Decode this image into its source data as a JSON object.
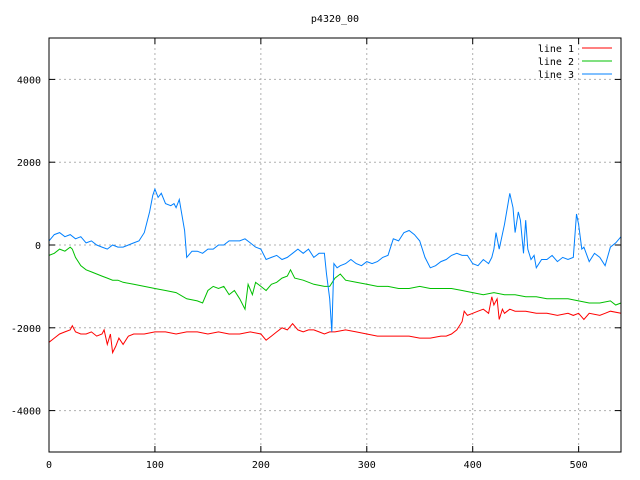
{
  "chart_data": {
    "type": "line",
    "title": "p4320_00",
    "xlabel": "",
    "ylabel": "",
    "xlim": [
      0,
      540
    ],
    "ylim": [
      -5000,
      5000
    ],
    "xticks": [
      0,
      100,
      200,
      300,
      400,
      500
    ],
    "yticks": [
      -4000,
      -2000,
      0,
      2000,
      4000
    ],
    "grid": true,
    "legend_position": "top-right",
    "series": [
      {
        "name": "line 1",
        "color": "#ff0000",
        "points": [
          [
            0,
            -2350
          ],
          [
            5,
            -2250
          ],
          [
            10,
            -2150
          ],
          [
            15,
            -2100
          ],
          [
            20,
            -2050
          ],
          [
            22,
            -1950
          ],
          [
            25,
            -2100
          ],
          [
            30,
            -2150
          ],
          [
            35,
            -2150
          ],
          [
            40,
            -2100
          ],
          [
            45,
            -2200
          ],
          [
            50,
            -2150
          ],
          [
            52,
            -2050
          ],
          [
            55,
            -2400
          ],
          [
            58,
            -2150
          ],
          [
            60,
            -2600
          ],
          [
            63,
            -2450
          ],
          [
            66,
            -2250
          ],
          [
            70,
            -2400
          ],
          [
            75,
            -2200
          ],
          [
            80,
            -2150
          ],
          [
            90,
            -2150
          ],
          [
            100,
            -2100
          ],
          [
            110,
            -2100
          ],
          [
            120,
            -2150
          ],
          [
            130,
            -2100
          ],
          [
            140,
            -2100
          ],
          [
            150,
            -2150
          ],
          [
            160,
            -2100
          ],
          [
            170,
            -2150
          ],
          [
            180,
            -2150
          ],
          [
            190,
            -2100
          ],
          [
            200,
            -2150
          ],
          [
            205,
            -2300
          ],
          [
            210,
            -2200
          ],
          [
            215,
            -2100
          ],
          [
            220,
            -2000
          ],
          [
            225,
            -2050
          ],
          [
            230,
            -1900
          ],
          [
            235,
            -2050
          ],
          [
            240,
            -2100
          ],
          [
            245,
            -2050
          ],
          [
            250,
            -2050
          ],
          [
            255,
            -2100
          ],
          [
            260,
            -2150
          ],
          [
            265,
            -2100
          ],
          [
            270,
            -2100
          ],
          [
            280,
            -2050
          ],
          [
            290,
            -2100
          ],
          [
            300,
            -2150
          ],
          [
            310,
            -2200
          ],
          [
            320,
            -2200
          ],
          [
            330,
            -2200
          ],
          [
            340,
            -2200
          ],
          [
            350,
            -2250
          ],
          [
            360,
            -2250
          ],
          [
            370,
            -2200
          ],
          [
            375,
            -2200
          ],
          [
            380,
            -2150
          ],
          [
            385,
            -2050
          ],
          [
            390,
            -1850
          ],
          [
            392,
            -1600
          ],
          [
            395,
            -1700
          ],
          [
            400,
            -1650
          ],
          [
            405,
            -1600
          ],
          [
            410,
            -1550
          ],
          [
            415,
            -1650
          ],
          [
            418,
            -1250
          ],
          [
            420,
            -1450
          ],
          [
            423,
            -1300
          ],
          [
            425,
            -1800
          ],
          [
            428,
            -1550
          ],
          [
            430,
            -1650
          ],
          [
            435,
            -1550
          ],
          [
            440,
            -1600
          ],
          [
            450,
            -1600
          ],
          [
            460,
            -1650
          ],
          [
            470,
            -1650
          ],
          [
            480,
            -1700
          ],
          [
            490,
            -1650
          ],
          [
            495,
            -1700
          ],
          [
            500,
            -1650
          ],
          [
            505,
            -1800
          ],
          [
            510,
            -1650
          ],
          [
            520,
            -1700
          ],
          [
            525,
            -1650
          ],
          [
            530,
            -1600
          ],
          [
            540,
            -1650
          ]
        ]
      },
      {
        "name": "line 2",
        "color": "#00c000",
        "points": [
          [
            0,
            -250
          ],
          [
            5,
            -200
          ],
          [
            10,
            -100
          ],
          [
            15,
            -150
          ],
          [
            20,
            -50
          ],
          [
            22,
            -100
          ],
          [
            25,
            -300
          ],
          [
            30,
            -500
          ],
          [
            35,
            -600
          ],
          [
            40,
            -650
          ],
          [
            45,
            -700
          ],
          [
            50,
            -750
          ],
          [
            55,
            -800
          ],
          [
            60,
            -850
          ],
          [
            65,
            -850
          ],
          [
            70,
            -900
          ],
          [
            80,
            -950
          ],
          [
            90,
            -1000
          ],
          [
            100,
            -1050
          ],
          [
            110,
            -1100
          ],
          [
            120,
            -1150
          ],
          [
            130,
            -1300
          ],
          [
            140,
            -1350
          ],
          [
            145,
            -1400
          ],
          [
            150,
            -1100
          ],
          [
            155,
            -1000
          ],
          [
            160,
            -1050
          ],
          [
            165,
            -1000
          ],
          [
            170,
            -1200
          ],
          [
            175,
            -1100
          ],
          [
            180,
            -1300
          ],
          [
            185,
            -1550
          ],
          [
            188,
            -950
          ],
          [
            192,
            -1200
          ],
          [
            195,
            -900
          ],
          [
            200,
            -1000
          ],
          [
            205,
            -1100
          ],
          [
            210,
            -950
          ],
          [
            215,
            -900
          ],
          [
            220,
            -800
          ],
          [
            225,
            -750
          ],
          [
            228,
            -600
          ],
          [
            232,
            -800
          ],
          [
            240,
            -850
          ],
          [
            250,
            -950
          ],
          [
            260,
            -1000
          ],
          [
            265,
            -1000
          ],
          [
            270,
            -800
          ],
          [
            275,
            -700
          ],
          [
            280,
            -850
          ],
          [
            290,
            -900
          ],
          [
            300,
            -950
          ],
          [
            310,
            -1000
          ],
          [
            320,
            -1000
          ],
          [
            330,
            -1050
          ],
          [
            340,
            -1050
          ],
          [
            350,
            -1000
          ],
          [
            360,
            -1050
          ],
          [
            370,
            -1050
          ],
          [
            380,
            -1050
          ],
          [
            390,
            -1100
          ],
          [
            400,
            -1150
          ],
          [
            410,
            -1200
          ],
          [
            420,
            -1150
          ],
          [
            430,
            -1200
          ],
          [
            440,
            -1200
          ],
          [
            450,
            -1250
          ],
          [
            460,
            -1250
          ],
          [
            470,
            -1300
          ],
          [
            480,
            -1300
          ],
          [
            490,
            -1300
          ],
          [
            500,
            -1350
          ],
          [
            510,
            -1400
          ],
          [
            520,
            -1400
          ],
          [
            530,
            -1350
          ],
          [
            535,
            -1450
          ],
          [
            540,
            -1400
          ]
        ]
      },
      {
        "name": "line 3",
        "color": "#0080ff",
        "points": [
          [
            0,
            100
          ],
          [
            5,
            250
          ],
          [
            10,
            300
          ],
          [
            15,
            200
          ],
          [
            20,
            250
          ],
          [
            25,
            150
          ],
          [
            30,
            200
          ],
          [
            35,
            50
          ],
          [
            40,
            100
          ],
          [
            45,
            0
          ],
          [
            50,
            -50
          ],
          [
            55,
            -100
          ],
          [
            60,
            0
          ],
          [
            65,
            -50
          ],
          [
            70,
            -50
          ],
          [
            75,
            0
          ],
          [
            80,
            50
          ],
          [
            85,
            100
          ],
          [
            90,
            300
          ],
          [
            95,
            800
          ],
          [
            98,
            1200
          ],
          [
            100,
            1350
          ],
          [
            103,
            1150
          ],
          [
            106,
            1250
          ],
          [
            110,
            1000
          ],
          [
            115,
            950
          ],
          [
            118,
            1000
          ],
          [
            120,
            900
          ],
          [
            123,
            1100
          ],
          [
            125,
            800
          ],
          [
            128,
            350
          ],
          [
            130,
            -300
          ],
          [
            135,
            -150
          ],
          [
            140,
            -150
          ],
          [
            145,
            -200
          ],
          [
            150,
            -100
          ],
          [
            155,
            -100
          ],
          [
            160,
            0
          ],
          [
            165,
            0
          ],
          [
            170,
            100
          ],
          [
            175,
            100
          ],
          [
            180,
            100
          ],
          [
            185,
            150
          ],
          [
            190,
            50
          ],
          [
            195,
            -50
          ],
          [
            200,
            -100
          ],
          [
            205,
            -350
          ],
          [
            210,
            -300
          ],
          [
            215,
            -250
          ],
          [
            220,
            -350
          ],
          [
            225,
            -300
          ],
          [
            230,
            -200
          ],
          [
            235,
            -100
          ],
          [
            240,
            -200
          ],
          [
            245,
            -100
          ],
          [
            250,
            -300
          ],
          [
            255,
            -200
          ],
          [
            260,
            -200
          ],
          [
            262,
            -700
          ],
          [
            265,
            -1300
          ],
          [
            267,
            -2100
          ],
          [
            269,
            -450
          ],
          [
            272,
            -550
          ],
          [
            275,
            -500
          ],
          [
            280,
            -450
          ],
          [
            285,
            -350
          ],
          [
            290,
            -450
          ],
          [
            295,
            -500
          ],
          [
            300,
            -400
          ],
          [
            305,
            -450
          ],
          [
            310,
            -400
          ],
          [
            315,
            -300
          ],
          [
            320,
            -250
          ],
          [
            325,
            150
          ],
          [
            330,
            100
          ],
          [
            335,
            300
          ],
          [
            340,
            350
          ],
          [
            345,
            250
          ],
          [
            350,
            100
          ],
          [
            355,
            -300
          ],
          [
            360,
            -550
          ],
          [
            365,
            -500
          ],
          [
            370,
            -400
          ],
          [
            375,
            -350
          ],
          [
            380,
            -250
          ],
          [
            385,
            -200
          ],
          [
            390,
            -250
          ],
          [
            395,
            -250
          ],
          [
            400,
            -450
          ],
          [
            405,
            -500
          ],
          [
            410,
            -350
          ],
          [
            415,
            -450
          ],
          [
            418,
            -300
          ],
          [
            420,
            -100
          ],
          [
            422,
            300
          ],
          [
            425,
            -100
          ],
          [
            430,
            500
          ],
          [
            435,
            1250
          ],
          [
            438,
            900
          ],
          [
            440,
            300
          ],
          [
            443,
            800
          ],
          [
            445,
            600
          ],
          [
            448,
            -200
          ],
          [
            450,
            600
          ],
          [
            452,
            -100
          ],
          [
            455,
            -350
          ],
          [
            458,
            -250
          ],
          [
            460,
            -550
          ],
          [
            465,
            -350
          ],
          [
            470,
            -350
          ],
          [
            475,
            -250
          ],
          [
            480,
            -400
          ],
          [
            485,
            -300
          ],
          [
            490,
            -350
          ],
          [
            495,
            -300
          ],
          [
            498,
            750
          ],
          [
            500,
            500
          ],
          [
            503,
            -100
          ],
          [
            505,
            -50
          ],
          [
            510,
            -400
          ],
          [
            515,
            -200
          ],
          [
            520,
            -300
          ],
          [
            525,
            -500
          ],
          [
            530,
            -50
          ],
          [
            535,
            50
          ],
          [
            540,
            200
          ]
        ]
      }
    ]
  }
}
